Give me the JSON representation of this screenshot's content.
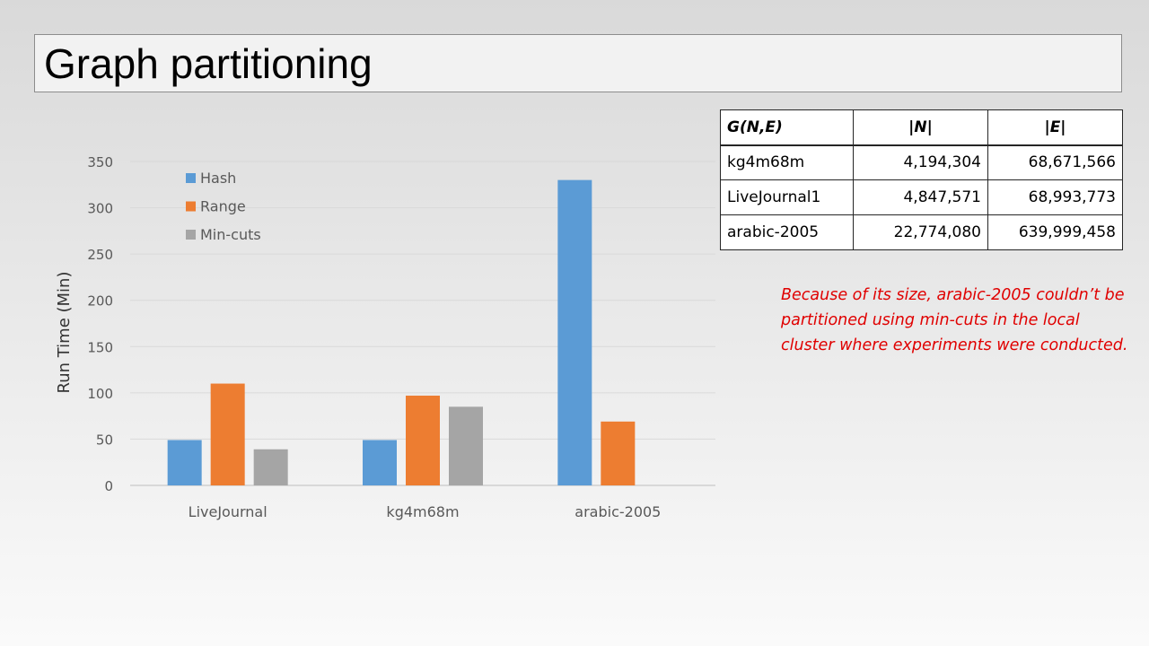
{
  "slide": {
    "title": "Graph partitioning",
    "note": "Because of its size, arabic-2005 couldn’t be partitioned using min-cuts in the local cluster where experiments were conducted."
  },
  "table": {
    "headers": [
      "G(N,E)",
      "|N|",
      "|E|"
    ],
    "rows": [
      [
        "kg4m68m",
        "4,194,304",
        "68,671,566"
      ],
      [
        "LiveJournal1",
        "4,847,571",
        "68,993,773"
      ],
      [
        "arabic-2005",
        "22,774,080",
        "639,999,458"
      ]
    ]
  },
  "chart_data": {
    "type": "bar",
    "categories": [
      "LiveJournal",
      "kg4m68m",
      "arabic-2005"
    ],
    "series": [
      {
        "name": "Hash",
        "color": "#5b9bd5",
        "values": [
          49,
          49,
          330
        ]
      },
      {
        "name": "Range",
        "color": "#ed7d31",
        "values": [
          110,
          97,
          69
        ]
      },
      {
        "name": "Min-cuts",
        "color": "#a5a5a5",
        "values": [
          39,
          85,
          null
        ]
      }
    ],
    "xlabel": "",
    "ylabel": "Run Time (Min)",
    "ylim": [
      0,
      350
    ],
    "yticks": [
      0,
      50,
      100,
      150,
      200,
      250,
      300,
      350
    ],
    "grid": true,
    "legend": "top-left"
  }
}
